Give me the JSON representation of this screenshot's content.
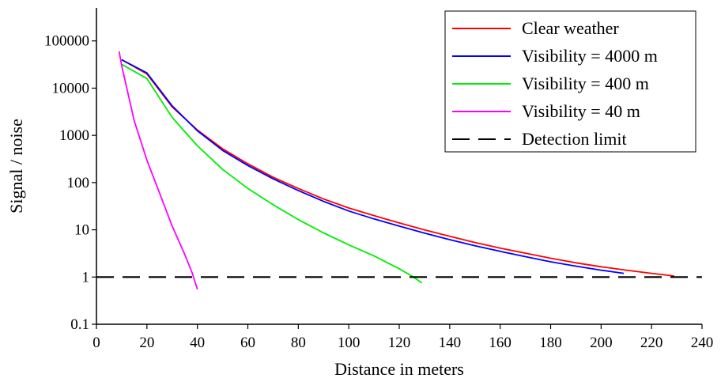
{
  "chart_data": {
    "type": "line",
    "xlabel": "Distance in meters",
    "ylabel": "Signal / noise",
    "xlim": [
      0,
      240
    ],
    "ylim": [
      0.1,
      500000
    ],
    "yscale": "log",
    "grid": false,
    "legend_position": "top-right",
    "x_ticks": [
      0,
      20,
      40,
      60,
      80,
      100,
      120,
      140,
      160,
      180,
      200,
      220,
      240
    ],
    "x_tick_labels": [
      "0",
      "20",
      "40",
      "60",
      "80",
      "100",
      "120",
      "140",
      "160",
      "180",
      "200",
      "220",
      "240"
    ],
    "y_ticks": [
      0.1,
      1,
      10,
      100,
      1000,
      10000,
      100000
    ],
    "y_tick_labels": [
      "0.1",
      "1",
      "10",
      "100",
      "1000",
      "10000",
      "100000"
    ],
    "series": [
      {
        "name": "Clear weather",
        "color": "#ff0000",
        "dash": "solid",
        "x": [
          10,
          20,
          30,
          40,
          50,
          60,
          70,
          80,
          90,
          100,
          110,
          120,
          130,
          140,
          150,
          160,
          170,
          180,
          190,
          200,
          210,
          220,
          229
        ],
        "y": [
          40000,
          20000,
          4000,
          1300,
          520,
          250,
          130,
          75,
          45,
          29,
          20,
          14,
          10,
          7.3,
          5.4,
          4.1,
          3.2,
          2.5,
          2.0,
          1.65,
          1.4,
          1.2,
          1.05
        ]
      },
      {
        "name": "Visibility = 4000 m",
        "color": "#0000ff",
        "dash": "solid",
        "x": [
          10,
          20,
          30,
          40,
          50,
          60,
          70,
          80,
          90,
          100,
          110,
          120,
          130,
          140,
          150,
          160,
          170,
          180,
          190,
          200,
          209
        ],
        "y": [
          40000,
          21000,
          4200,
          1250,
          480,
          230,
          120,
          68,
          40,
          25,
          17,
          12,
          8.5,
          6.2,
          4.6,
          3.5,
          2.7,
          2.1,
          1.7,
          1.4,
          1.2
        ]
      },
      {
        "name": "Visibility = 400 m",
        "color": "#00ee00",
        "dash": "solid",
        "x": [
          10,
          20,
          30,
          40,
          50,
          60,
          70,
          80,
          90,
          100,
          110,
          120,
          125,
          129
        ],
        "y": [
          32000,
          16000,
          2400,
          600,
          190,
          75,
          34,
          16.5,
          8.6,
          4.8,
          2.8,
          1.5,
          1.05,
          0.75
        ]
      },
      {
        "name": "Visibility = 40 m",
        "color": "#ff00ff",
        "dash": "solid",
        "x": [
          9,
          10,
          15,
          20,
          25,
          30,
          35,
          38,
          40
        ],
        "y": [
          60000,
          30000,
          2000,
          300,
          60,
          12,
          3,
          1.2,
          0.55
        ]
      },
      {
        "name": "Detection limit",
        "color": "#000000",
        "dash": "dashed",
        "x": [
          0,
          240
        ],
        "y": [
          1,
          1
        ]
      }
    ]
  }
}
